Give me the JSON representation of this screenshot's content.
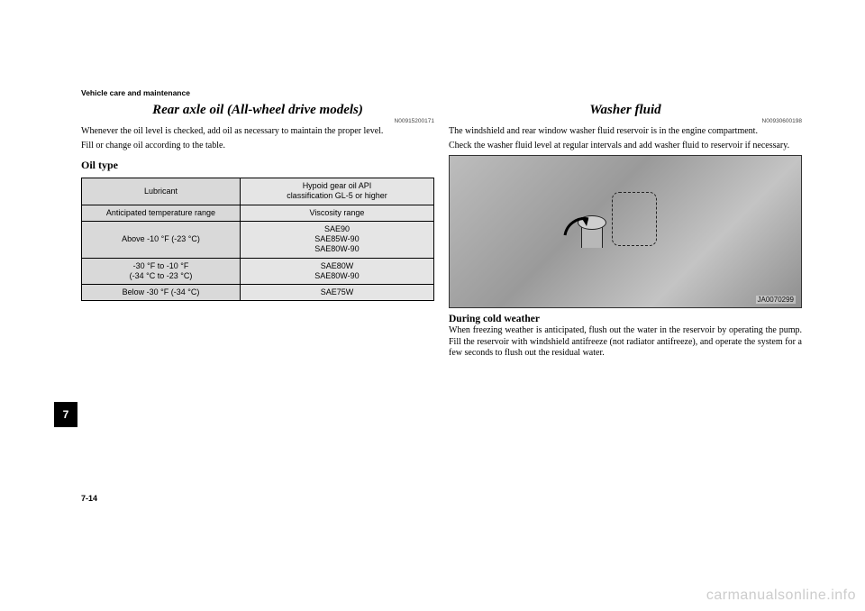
{
  "header": "Vehicle care and maintenance",
  "left": {
    "title": "Rear axle oil (All-wheel drive models)",
    "docid": "N00915200171",
    "para1": "Whenever the oil level is checked, add oil as necessary to maintain the proper level.",
    "para2": "Fill or change oil according to the table.",
    "subheading": "Oil type",
    "table": {
      "rows": [
        {
          "k": "Lubricant",
          "v": "Hypoid gear oil API\nclassification GL-5 or higher"
        },
        {
          "k": "Anticipated temperature range",
          "v": "Viscosity range"
        },
        {
          "k": "Above -10 °F (-23 °C)",
          "v": "SAE90\nSAE85W-90\nSAE80W-90"
        },
        {
          "k": "-30 °F to -10 °F\n(-34 °C to -23 °C)",
          "v": "SAE80W\nSAE80W-90"
        },
        {
          "k": "Below -30 °F (-34 °C)",
          "v": "SAE75W"
        }
      ]
    }
  },
  "right": {
    "title": "Washer fluid",
    "docid": "N00930600198",
    "para1": "The windshield and rear window washer fluid reservoir is in the engine compartment.",
    "para2": "Check the washer fluid level at regular intervals and add washer fluid to reservoir if necessary.",
    "image_code": "JA0070299",
    "subheading": "During cold weather",
    "para3": "When freezing weather is anticipated, flush out the water in the reservoir by operating the pump. Fill the reservoir with windshield antifreeze (not radiator antifreeze), and operate the system for a few seconds to flush out the residual water."
  },
  "page_tab": "7",
  "page_number": "7-14",
  "watermark": "carmanualsonline.info"
}
